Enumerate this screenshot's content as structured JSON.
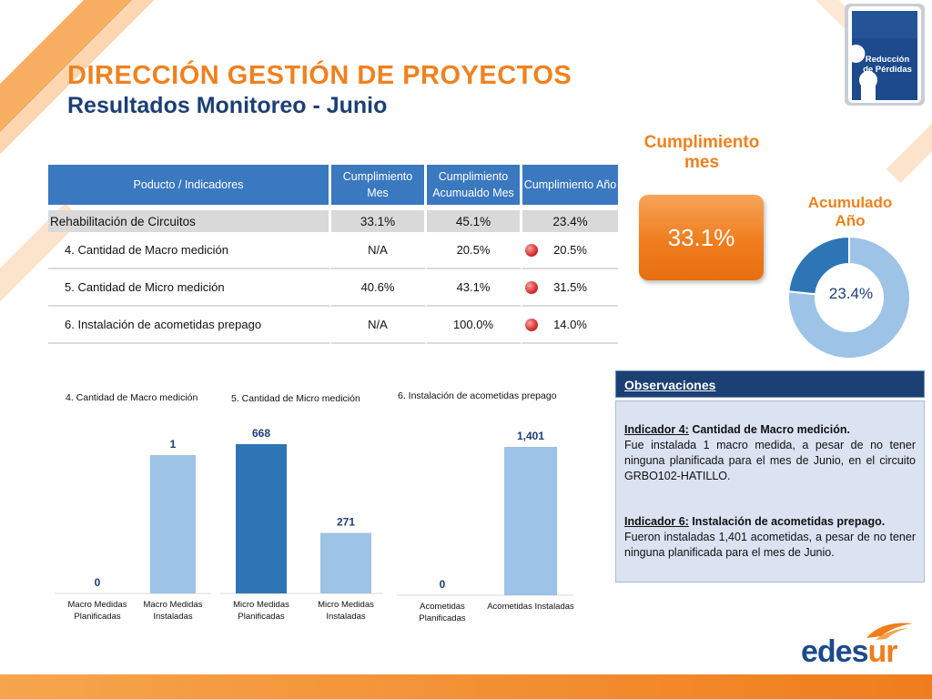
{
  "header": {
    "title": "DIRECCIÓN GESTIÓN DE PROYECTOS",
    "subtitle": "Resultados Monitoreo - Junio"
  },
  "badge": {
    "text": "Reducción\nde Pérdidas"
  },
  "table": {
    "headers": [
      "Poducto / Indicadores",
      "Cumplimiento Mes",
      "Cumplimiento Acumualdo Mes",
      "Cumplimiento Año"
    ],
    "group": {
      "label": "Rehabilitación de Circuitos",
      "mes": "33.1%",
      "acumulado": "45.1%",
      "anio": "23.4%"
    },
    "rows": [
      {
        "label": "4. Cantidad de Macro medición",
        "mes": "N/A",
        "acumulado": "20.5%",
        "anio": "20.5%",
        "status": "red"
      },
      {
        "label": "5. Cantidad de Micro medición",
        "mes": "40.6%",
        "acumulado": "43.1%",
        "anio": "31.5%",
        "status": "red"
      },
      {
        "label": "6. Instalación de acometidas prepago",
        "mes": "N/A",
        "acumulado": "100.0%",
        "anio": "14.0%",
        "status": "red"
      }
    ]
  },
  "kpi": {
    "title": "Cumplimiento\nmes",
    "value": "33.1%",
    "acc_title": "Acumulado\nAño",
    "acc_value": "23.4%",
    "acc_fraction": 0.234
  },
  "observations": {
    "title": "Observaciones",
    "items": [
      {
        "indicator": "Indicador  4:",
        "name": " Cantidad de Macro medición.",
        "text": "Fue instalada 1 macro medida, a pesar de no tener ninguna planificada para el mes de Junio, en el circuito GRBO102-HATILLO."
      },
      {
        "indicator": "Indicador  6:",
        "name": " Instalación de acometidas prepago.",
        "text": "Fueron instaladas 1,401 acometidas, a pesar de no tener ninguna planificada para el mes de Junio."
      }
    ]
  },
  "colors": {
    "orange": "#f0811e",
    "navy": "#1c3f74",
    "header_blue": "#3a78bf",
    "bar_light": "#9dc3e6",
    "bar_dark": "#2e75b6",
    "status_red": "#d62f2f"
  },
  "chart_data": [
    {
      "type": "bar",
      "title": "4. Cantidad de Macro medición",
      "categories": [
        "Macro Medidas Planificadas",
        "Macro Medidas Instaladas"
      ],
      "values": [
        0,
        1
      ],
      "labels": [
        "0",
        "1"
      ],
      "ylim": [
        0,
        1.15
      ]
    },
    {
      "type": "bar",
      "title": "5. Cantidad de Micro medición",
      "categories": [
        "Micro Medidas Planificadas",
        "Micro Medidas Instaladas"
      ],
      "values": [
        668,
        271
      ],
      "labels": [
        "668",
        "271"
      ],
      "ylim": [
        0,
        700
      ]
    },
    {
      "type": "bar",
      "title": "6. Instalación de acometidas prepago",
      "categories": [
        "Acometidas Planificadas",
        "Acometidas Instaladas"
      ],
      "values": [
        0,
        1401
      ],
      "labels": [
        "0",
        "1,401"
      ],
      "ylim": [
        0,
        1520
      ]
    }
  ],
  "footer": {
    "logo_a": "edes",
    "logo_b": "ur"
  }
}
